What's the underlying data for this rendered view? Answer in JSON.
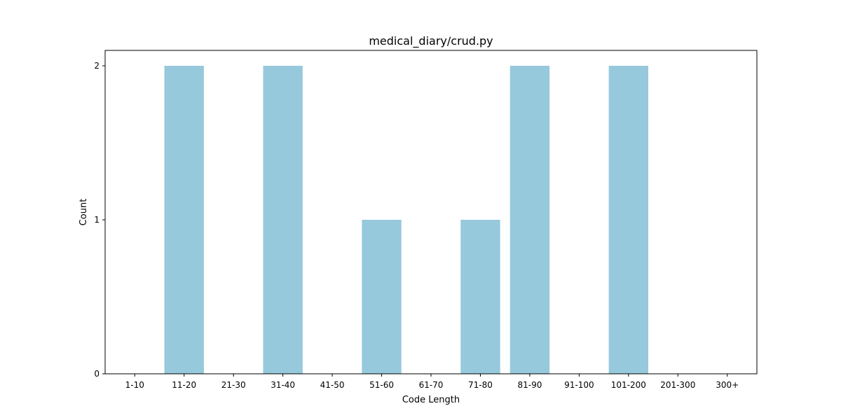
{
  "chart_data": {
    "type": "bar",
    "title": "medical_diary/crud.py",
    "xlabel": "Code Length",
    "ylabel": "Count",
    "categories": [
      "1-10",
      "11-20",
      "21-30",
      "31-40",
      "41-50",
      "51-60",
      "61-70",
      "71-80",
      "81-90",
      "91-100",
      "101-200",
      "201-300",
      "300+"
    ],
    "values": [
      0,
      2,
      0,
      2,
      0,
      1,
      0,
      1,
      2,
      0,
      2,
      0,
      0
    ],
    "yticks": [
      "0",
      "1",
      "2"
    ],
    "ylim": [
      0,
      2.1
    ],
    "grid": false,
    "legend": "none",
    "bar_color": "#96c9dc"
  }
}
